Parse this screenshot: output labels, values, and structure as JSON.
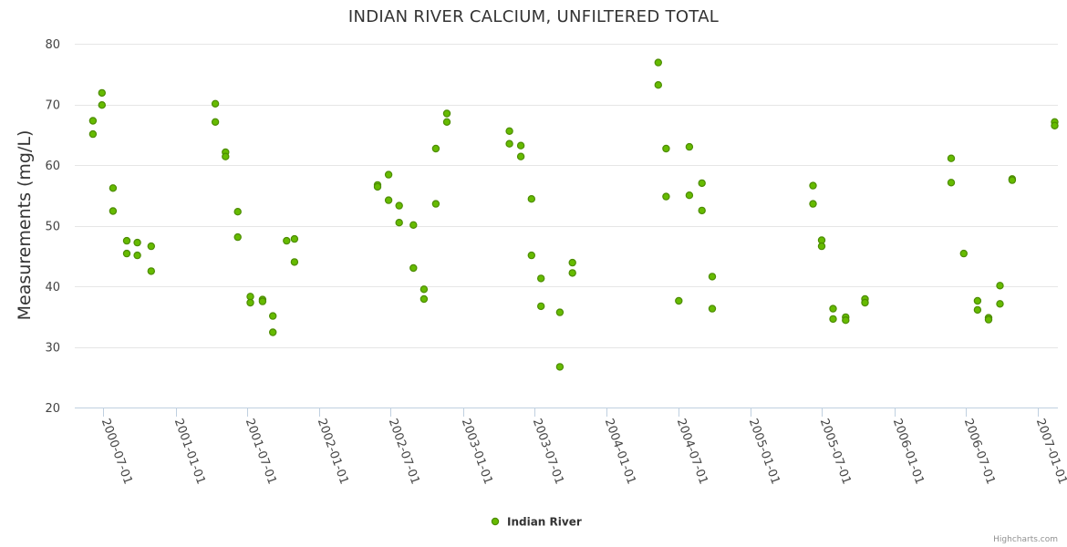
{
  "chart_data": {
    "type": "scatter",
    "title": "INDIAN RIVER CALCIUM, UNFILTERED TOTAL",
    "xlabel": "",
    "ylabel": "Measurements (mg/L)",
    "xlim": [
      "2000-04-20",
      "2007-02-20"
    ],
    "ylim": [
      20,
      80
    ],
    "yticks": [
      20,
      30,
      40,
      50,
      60,
      70,
      80
    ],
    "xticks": [
      "2000-07-01",
      "2001-01-01",
      "2001-07-01",
      "2002-01-01",
      "2002-07-01",
      "2003-01-01",
      "2003-07-01",
      "2004-01-01",
      "2004-07-01",
      "2005-01-01",
      "2005-07-01",
      "2006-01-01",
      "2006-07-01",
      "2007-01-01"
    ],
    "grid": true,
    "legend_position": "bottom-center",
    "credits": "Highcharts.com",
    "series": [
      {
        "name": "Indian River",
        "color": "#66bb00",
        "stroke": "#4c8c00",
        "points": [
          [
            "2000-06-05",
            67.3
          ],
          [
            "2000-06-05",
            65.1
          ],
          [
            "2000-06-28",
            71.9
          ],
          [
            "2000-06-28",
            69.9
          ],
          [
            "2000-07-26",
            56.2
          ],
          [
            "2000-07-26",
            52.4
          ],
          [
            "2000-08-30",
            47.5
          ],
          [
            "2000-08-30",
            45.4
          ],
          [
            "2000-09-26",
            47.2
          ],
          [
            "2000-09-26",
            45.1
          ],
          [
            "2000-10-31",
            46.6
          ],
          [
            "2000-10-31",
            42.5
          ],
          [
            "2001-04-12",
            70.1
          ],
          [
            "2001-04-12",
            67.1
          ],
          [
            "2001-05-08",
            62.1
          ],
          [
            "2001-05-08",
            61.4
          ],
          [
            "2001-06-08",
            52.3
          ],
          [
            "2001-06-08",
            48.1
          ],
          [
            "2001-07-10",
            38.3
          ],
          [
            "2001-07-10",
            37.3
          ],
          [
            "2001-08-10",
            37.8
          ],
          [
            "2001-08-10",
            37.5
          ],
          [
            "2001-09-05",
            35.1
          ],
          [
            "2001-09-05",
            32.4
          ],
          [
            "2001-10-10",
            47.5
          ],
          [
            "2001-10-30",
            47.8
          ],
          [
            "2001-10-30",
            44.0
          ],
          [
            "2002-05-29",
            56.7
          ],
          [
            "2002-05-29",
            56.4
          ],
          [
            "2002-06-26",
            58.4
          ],
          [
            "2002-06-26",
            54.2
          ],
          [
            "2002-07-23",
            53.3
          ],
          [
            "2002-07-23",
            50.5
          ],
          [
            "2002-08-28",
            50.1
          ],
          [
            "2002-08-28",
            43.0
          ],
          [
            "2002-09-24",
            39.5
          ],
          [
            "2002-09-24",
            37.9
          ],
          [
            "2002-10-24",
            62.7
          ],
          [
            "2002-10-24",
            53.6
          ],
          [
            "2002-11-21",
            68.5
          ],
          [
            "2002-11-21",
            67.1
          ],
          [
            "2003-04-29",
            65.6
          ],
          [
            "2003-04-29",
            63.5
          ],
          [
            "2003-05-28",
            63.2
          ],
          [
            "2003-05-28",
            61.4
          ],
          [
            "2003-06-24",
            54.4
          ],
          [
            "2003-06-24",
            45.1
          ],
          [
            "2003-07-18",
            41.3
          ],
          [
            "2003-07-18",
            36.7
          ],
          [
            "2003-09-04",
            35.7
          ],
          [
            "2003-09-04",
            26.7
          ],
          [
            "2003-10-06",
            43.9
          ],
          [
            "2003-10-06",
            42.2
          ],
          [
            "2004-05-11",
            76.9
          ],
          [
            "2004-05-11",
            73.2
          ],
          [
            "2004-05-31",
            62.7
          ],
          [
            "2004-05-31",
            54.8
          ],
          [
            "2004-07-02",
            37.6
          ],
          [
            "2004-07-29",
            63.0
          ],
          [
            "2004-07-29",
            55.0
          ],
          [
            "2004-08-30",
            57.0
          ],
          [
            "2004-08-30",
            52.5
          ],
          [
            "2004-09-25",
            41.6
          ],
          [
            "2004-09-25",
            36.3
          ],
          [
            "2005-06-08",
            56.6
          ],
          [
            "2005-06-08",
            53.6
          ],
          [
            "2005-06-30",
            47.6
          ],
          [
            "2005-06-30",
            46.6
          ],
          [
            "2005-07-29",
            36.3
          ],
          [
            "2005-07-29",
            34.6
          ],
          [
            "2005-08-30",
            34.9
          ],
          [
            "2005-08-30",
            34.4
          ],
          [
            "2005-10-18",
            37.9
          ],
          [
            "2005-10-18",
            37.3
          ],
          [
            "2006-05-25",
            61.1
          ],
          [
            "2006-05-25",
            57.1
          ],
          [
            "2006-06-26",
            45.4
          ],
          [
            "2006-07-31",
            37.6
          ],
          [
            "2006-07-31",
            36.1
          ],
          [
            "2006-08-28",
            34.8
          ],
          [
            "2006-08-28",
            34.5
          ],
          [
            "2006-09-26",
            40.1
          ],
          [
            "2006-09-26",
            37.1
          ],
          [
            "2006-10-27",
            57.7
          ],
          [
            "2006-10-27",
            57.5
          ],
          [
            "2007-02-12",
            67.1
          ],
          [
            "2007-02-12",
            66.5
          ]
        ]
      }
    ]
  }
}
